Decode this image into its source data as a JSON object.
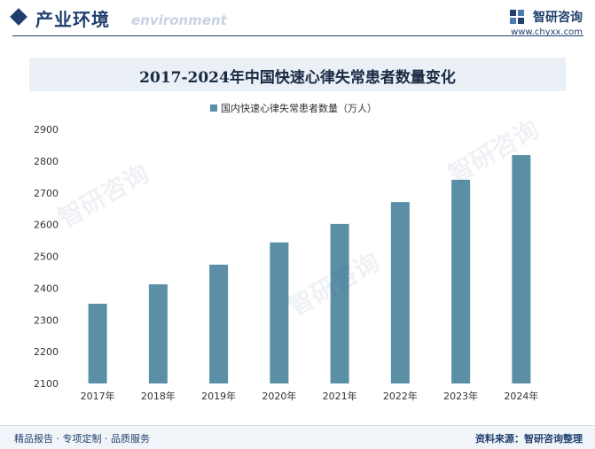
{
  "header": {
    "title": "产业环境",
    "subtitle": "environment",
    "brand_name": "智研咨询",
    "brand_url": "www.chyxx.com"
  },
  "watermark_text": "智研咨询",
  "footer": {
    "left_text": "精品报告 · 专项定制 · 品质服务",
    "right_text": "资料来源：智研咨询整理"
  },
  "colors": {
    "bar": "#5b8fa6",
    "brand": "#1f3f6e",
    "title_band": "#eaf0f6"
  },
  "chart_data": {
    "type": "bar",
    "title": "2017-2024年中国快速心律失常患者数量变化",
    "categories": [
      "2017年",
      "2018年",
      "2019年",
      "2020年",
      "2021年",
      "2022年",
      "2023年",
      "2024年"
    ],
    "series": [
      {
        "name": "国内快速心律失常患者数量（万人）",
        "values": [
          2351,
          2412,
          2474,
          2544,
          2602,
          2671,
          2741,
          2819
        ]
      }
    ],
    "ylim": [
      2100,
      2900
    ],
    "yticks": [
      2100,
      2200,
      2300,
      2400,
      2500,
      2600,
      2700,
      2800,
      2900
    ],
    "grid": false,
    "legend": "top"
  }
}
